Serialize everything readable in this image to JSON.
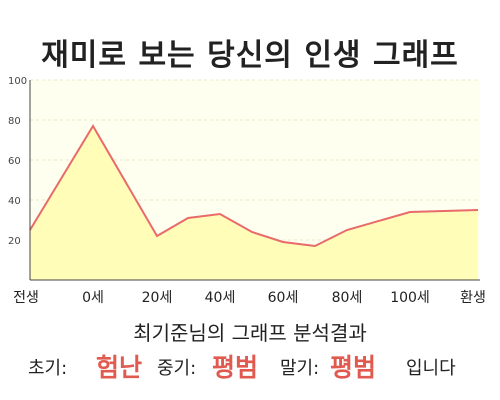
{
  "title": "재미로 보는 당신의 인생 그래프",
  "subtitle": "최기준님의 그래프 분석결과",
  "result": {
    "early_label": "초기:",
    "early_value": "험난",
    "mid_label": "중기:",
    "mid_value": "평범",
    "late_label": "말기:",
    "late_value": "평범",
    "suffix": "입니다"
  },
  "colors": {
    "line": "#e86a6a",
    "fill": "#fffdb8",
    "plot_bg": "#fffff0",
    "grid": "#e8e8c8",
    "highlight_text": "#e05a50"
  },
  "chart_data": {
    "type": "area",
    "x_labels": [
      "전생",
      "0세",
      "20세",
      "40세",
      "60세",
      "80세",
      "100세",
      "환생"
    ],
    "y_ticks": [
      20,
      40,
      60,
      80,
      100
    ],
    "ylim": [
      0,
      100
    ],
    "grid": true,
    "series": [
      {
        "points": [
          {
            "x": "전생",
            "y": 25
          },
          {
            "x": "0세",
            "y": 77
          },
          {
            "x": "20세",
            "y": 22
          },
          {
            "x": "30세",
            "y": 31
          },
          {
            "x": "40세",
            "y": 33
          },
          {
            "x": "50세",
            "y": 24
          },
          {
            "x": "60세",
            "y": 19
          },
          {
            "x": "70세",
            "y": 17
          },
          {
            "x": "80세",
            "y": 25
          },
          {
            "x": "100세",
            "y": 34
          },
          {
            "x": "환생",
            "y": 35
          }
        ]
      }
    ]
  }
}
